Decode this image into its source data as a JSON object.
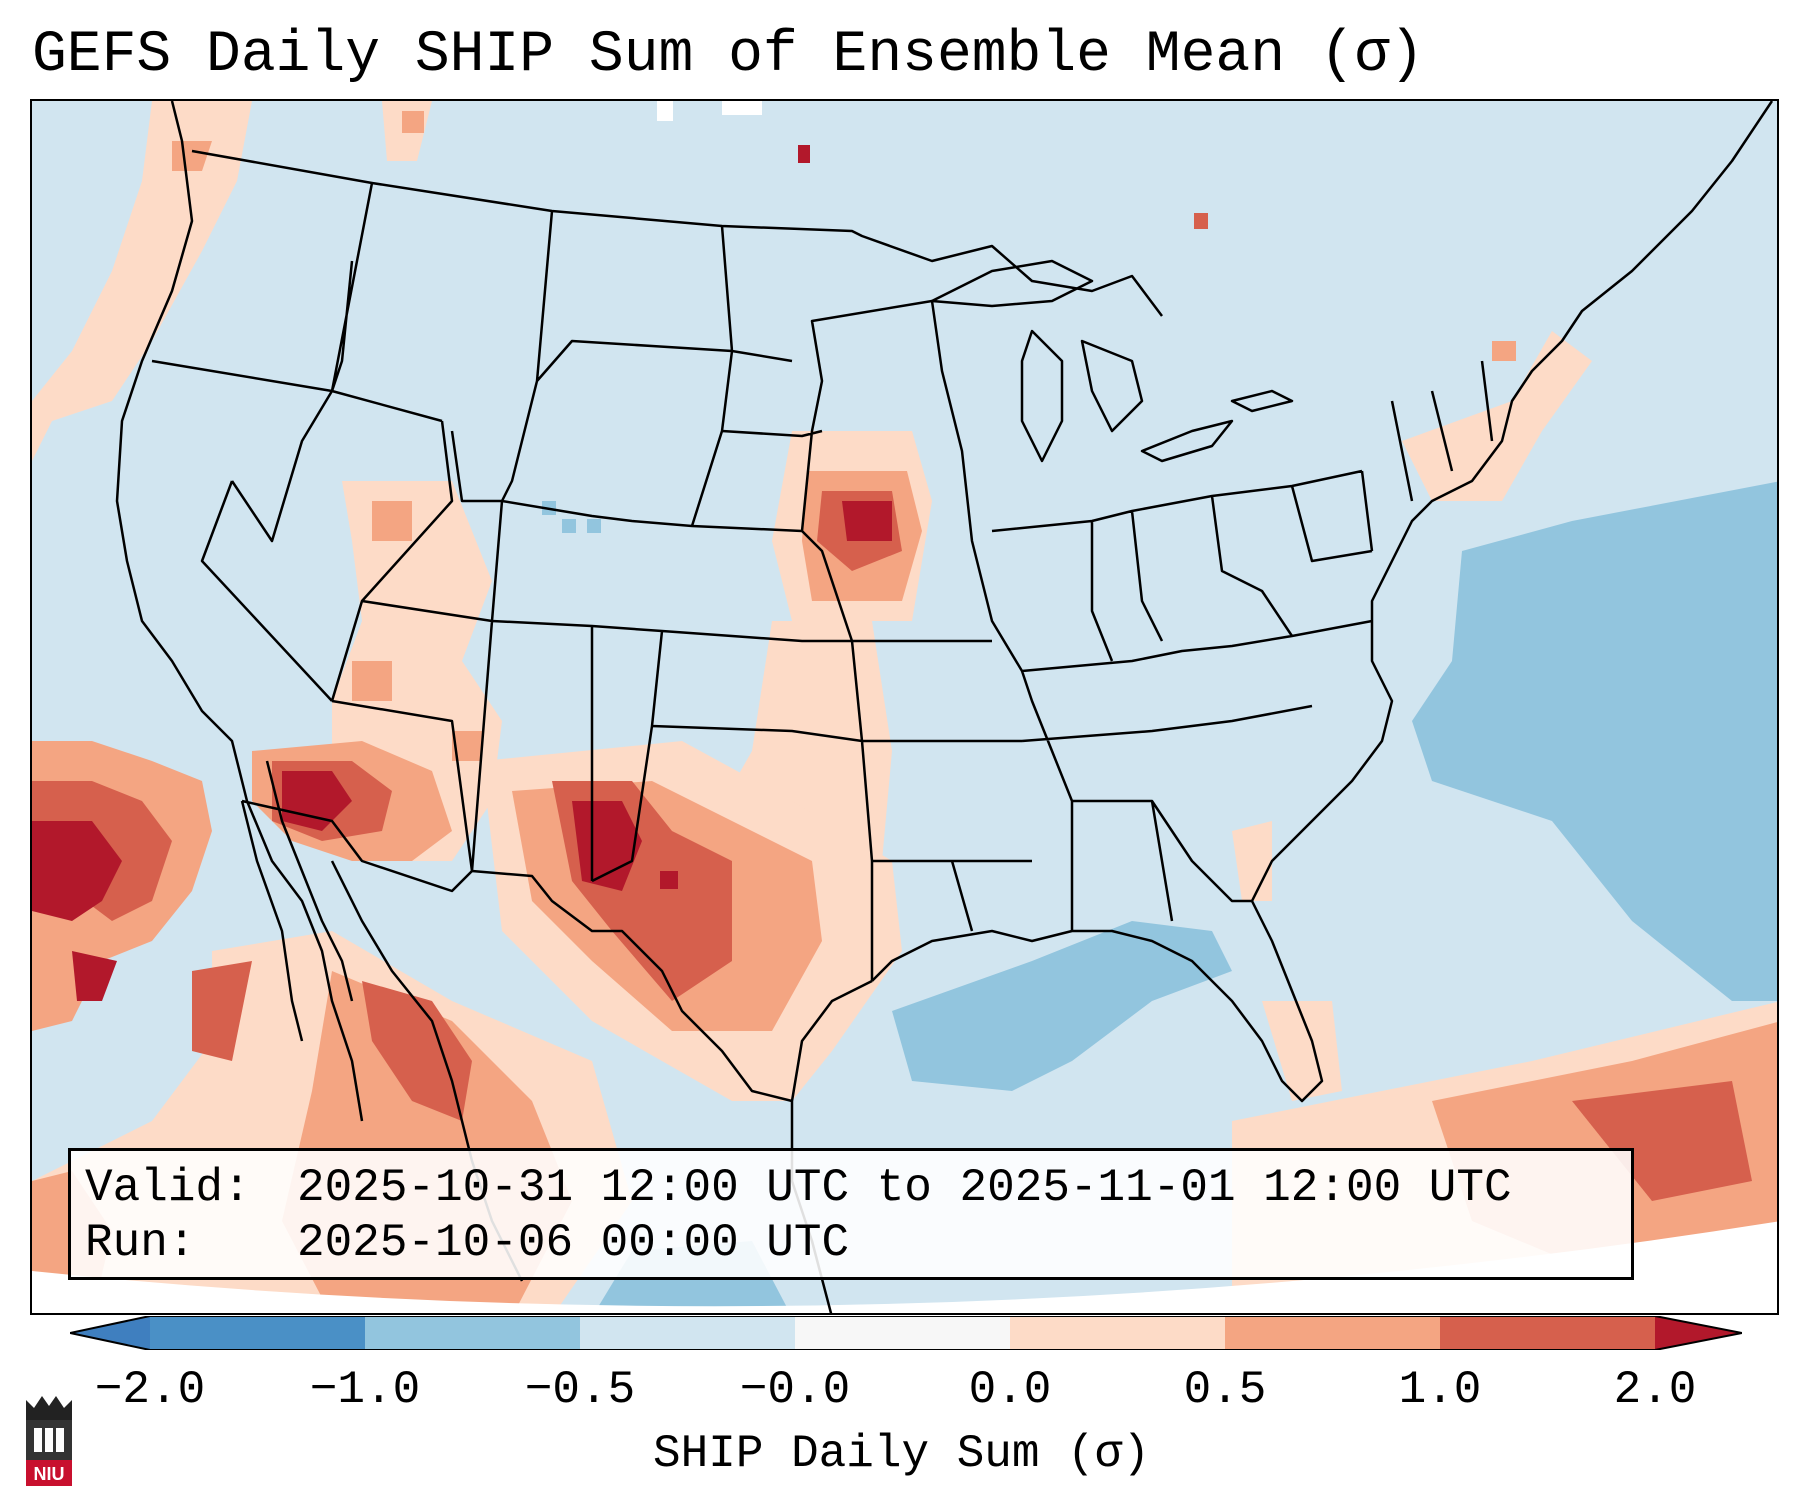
{
  "title": "GEFS Daily SHIP Sum of Ensemble Mean (σ)",
  "info": {
    "valid_label": "Valid:",
    "valid_value": "2025-10-31 12:00 UTC to 2025-11-01 12:00 UTC",
    "run_label": "Run:",
    "run_value": "2025-10-06 00:00 UTC"
  },
  "colorbar": {
    "label": "SHIP Daily Sum (σ)",
    "ticks": [
      "−2.0",
      "−1.0",
      "−0.5",
      "−0.0",
      "0.0",
      "0.5",
      "1.0",
      "2.0"
    ],
    "bins": [
      {
        "range": "below −2.0",
        "color": "#3f7fbf"
      },
      {
        "range": "−2.0 to −1.0",
        "color": "#4a90c6"
      },
      {
        "range": "−1.0 to −0.5",
        "color": "#92c5de"
      },
      {
        "range": "−0.5 to −0.0",
        "color": "#d1e5f0"
      },
      {
        "range": "−0.0 to 0.0",
        "color": "#f7f7f7"
      },
      {
        "range": "0.0 to 0.5",
        "color": "#fddbc7"
      },
      {
        "range": "0.5 to 1.0",
        "color": "#f4a582"
      },
      {
        "range": "1.0 to 2.0",
        "color": "#d6604d"
      },
      {
        "range": "above 2.0",
        "color": "#b2182b"
      }
    ]
  },
  "map": {
    "background_color": "#d1e5f0",
    "anomaly_regions": [
      {
        "name": "pacific-northwest-coast",
        "level": "0.0 to 0.5"
      },
      {
        "name": "southern-california-offshore",
        "level": "above 2.0"
      },
      {
        "name": "arizona",
        "level": "above 2.0"
      },
      {
        "name": "utah-nevada",
        "level": "0.0 to 1.0"
      },
      {
        "name": "iowa",
        "level": "above 2.0"
      },
      {
        "name": "new-mexico-texas",
        "level": "above 2.0"
      },
      {
        "name": "mexico",
        "level": "1.0 to 2.0"
      },
      {
        "name": "gulf-of-mexico",
        "level": "−1.0 to −0.5"
      },
      {
        "name": "western-atlantic",
        "level": "−1.0 to −0.5"
      },
      {
        "name": "caribbean",
        "level": "0.5 to 1.0"
      },
      {
        "name": "new-england",
        "level": "0.0 to 0.5"
      }
    ]
  },
  "logo": {
    "text": "NIU"
  }
}
